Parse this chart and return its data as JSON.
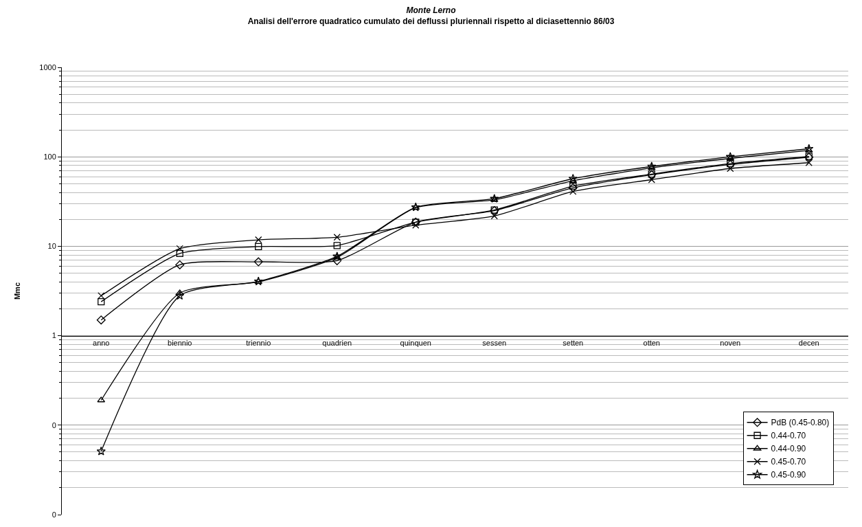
{
  "chart_data": {
    "type": "line",
    "title": "Monte Lerno",
    "subtitle": "Analisi dell'errore quadratico cumulato dei deflussi pluriennali rispetto al diciasettennio 86/03",
    "ylabel": "Mmc",
    "categories": [
      "anno",
      "biennio",
      "triennio",
      "quadrien",
      "quinquen",
      "sessen",
      "setten",
      "otten",
      "noven",
      "decen"
    ],
    "log": "y",
    "ylim": [
      0.01,
      1000
    ],
    "yticks": [
      {
        "value": 0.01,
        "label": "0"
      },
      {
        "value": 0.1,
        "label": "0"
      },
      1,
      10,
      100,
      1000
    ],
    "grid": "y",
    "legend": "bottom right",
    "line_style": "solid",
    "series": [
      {
        "name": "PdB (0.45-0.80)",
        "color": "#000000",
        "marker": "diamond",
        "values": [
          1.5,
          6.2,
          6.7,
          6.9,
          18.6,
          25,
          45,
          63,
          82,
          99
        ]
      },
      {
        "name": "0.44-0.70",
        "color": "#000000",
        "marker": "square",
        "values": [
          2.4,
          8.3,
          9.9,
          10.2,
          18.6,
          25.4,
          47,
          64,
          84,
          101
        ]
      },
      {
        "name": "0.44-0.90",
        "color": "#000000",
        "marker": "triangle",
        "values": [
          0.19,
          3.0,
          4.0,
          7.5,
          27,
          33,
          54,
          75,
          96,
          118
        ]
      },
      {
        "name": "0.45-0.70",
        "color": "#000000",
        "marker": "cross",
        "values": [
          2.8,
          9.4,
          11.8,
          12.6,
          17.2,
          21.8,
          41,
          55.5,
          74,
          86
        ]
      },
      {
        "name": "0.45-0.90",
        "color": "#000000",
        "marker": "star",
        "values": [
          0.051,
          2.8,
          4.05,
          7.7,
          27.3,
          34,
          57,
          78,
          100,
          123
        ]
      }
    ]
  }
}
